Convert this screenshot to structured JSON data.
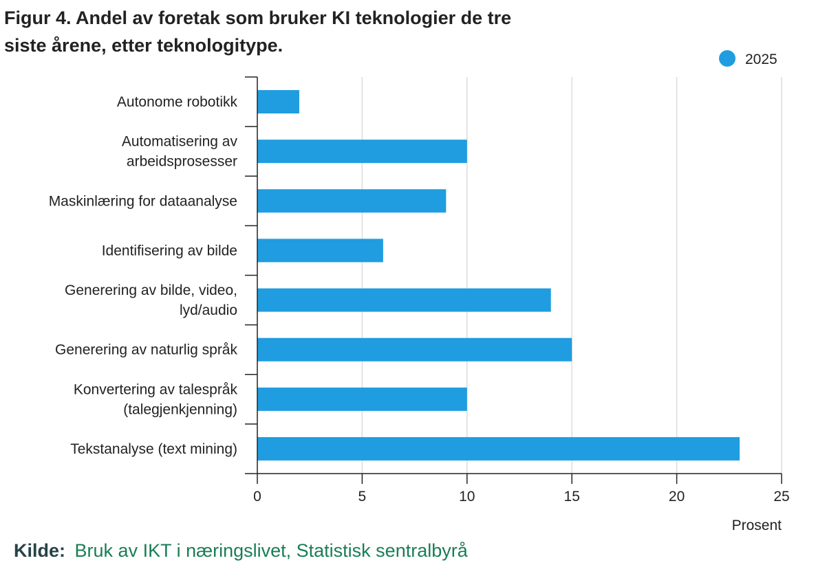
{
  "chart_data": {
    "type": "bar",
    "orientation": "horizontal",
    "title_lines": [
      "Figur 4. Andel av foretak som bruker KI teknologier de tre",
      "siste årene, etter teknologitype."
    ],
    "categories": [
      [
        "Autonome robotikk"
      ],
      [
        "Automatisering av",
        "arbeidsprosesser"
      ],
      [
        "Maskinlæring for dataanalyse"
      ],
      [
        "Identifisering av bilde"
      ],
      [
        "Generering av bilde, video,",
        "lyd/audio"
      ],
      [
        "Generering av naturlig språk"
      ],
      [
        "Konvertering av talespråk",
        "(talegjenkjenning)"
      ],
      [
        "Tekstanalyse (text mining)"
      ]
    ],
    "series": [
      {
        "name": "2025",
        "values": [
          2,
          10,
          9,
          6,
          14,
          15,
          10,
          23
        ],
        "color": "#1f9de0"
      }
    ],
    "xlabel": "Prosent",
    "xlim": [
      0,
      25
    ],
    "xticks": [
      "0",
      "5",
      "10",
      "15",
      "20",
      "25"
    ],
    "grid": true,
    "legend_position": "top-right"
  },
  "source": {
    "label": "Kilde:",
    "text": "Bruk av IKT i næringslivet, Statistisk sentralbyrå",
    "label_color": "#274247",
    "text_color": "#1a7d56"
  }
}
